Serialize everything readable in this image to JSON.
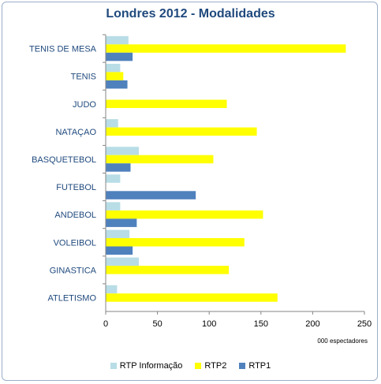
{
  "chart_data": {
    "type": "bar",
    "orientation": "horizontal",
    "title": "Londres 2012 - Modalidades",
    "xlabel": "000 espectadores",
    "xlim": [
      0,
      250
    ],
    "xticks": [
      0,
      50,
      100,
      150,
      200,
      250
    ],
    "grid": false,
    "legend_position": "bottom",
    "categories": [
      "TENIS DE MESA",
      "TENIS",
      "JUDO",
      "NATAÇAO",
      "BASQUETEBOL",
      "FUTEBOL",
      "ANDEBOL",
      "VOLEIBOL",
      "GINASTICA",
      "ATLETISMO"
    ],
    "series": [
      {
        "name": "RTP Informação",
        "color": "#b8dde6",
        "values": [
          22,
          14,
          0,
          12,
          32,
          14,
          14,
          23,
          32,
          11
        ]
      },
      {
        "name": "RTP2",
        "color": "#ffff00",
        "values": [
          232,
          17,
          117,
          146,
          104,
          0,
          152,
          134,
          119,
          166
        ]
      },
      {
        "name": "RTP1",
        "color": "#4f81bd",
        "values": [
          26,
          21,
          0,
          0,
          24,
          87,
          30,
          26,
          0,
          0
        ]
      }
    ]
  }
}
